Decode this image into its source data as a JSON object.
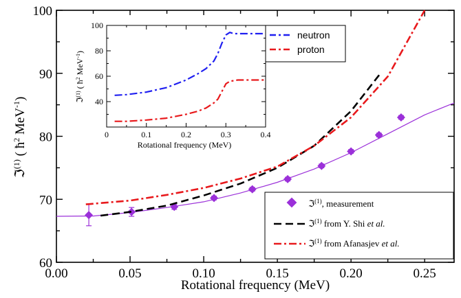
{
  "chart_data": [
    {
      "type": "scatter",
      "title": "",
      "xlabel": "Rotational frequency (MeV)",
      "ylabel": "ℑ(1) ( ħ² MeV⁻¹)",
      "ylabel_parts": {
        "sym": "ℑ",
        "sup1": "(1)",
        "open": " ( ",
        "hbar": "ħ",
        "sup2": "2",
        "mev": " MeV",
        "sup3": "-1",
        "close": ")"
      },
      "xlim": [
        0.0,
        0.27
      ],
      "ylim": [
        60,
        100
      ],
      "xticks": [
        0.0,
        0.05,
        0.1,
        0.15,
        0.2,
        0.25
      ],
      "xtick_labels": [
        "0.00",
        "0.05",
        "0.10",
        "0.15",
        "0.20",
        "0.25"
      ],
      "yticks": [
        60,
        70,
        80,
        90,
        100
      ],
      "ytick_labels": [
        "60",
        "70",
        "80",
        "90",
        "100"
      ],
      "grid": false,
      "legend_position": "lower-right",
      "series": [
        {
          "name": "ℑ(1), measurement",
          "legend": {
            "sym": "ℑ",
            "sup": "(1)",
            "text": ", measurement",
            "italic": ""
          },
          "kind": "markers",
          "marker": "diamond",
          "color": "#9b30d9",
          "x": [
            0.022,
            0.051,
            0.08,
            0.107,
            0.133,
            0.157,
            0.18,
            0.2,
            0.219,
            0.234
          ],
          "y": [
            67.5,
            68.0,
            68.8,
            70.2,
            71.6,
            73.2,
            75.3,
            77.6,
            80.2,
            83.0
          ],
          "yerr": [
            1.7,
            0.7,
            0.4,
            0.3,
            0.3,
            0.3,
            0.3,
            0.3,
            0.3,
            0.3
          ]
        },
        {
          "name": "fit",
          "kind": "line",
          "style": "solid",
          "color": "#9b30d9",
          "x": [
            0.0,
            0.025,
            0.05,
            0.075,
            0.1,
            0.125,
            0.15,
            0.175,
            0.2,
            0.225,
            0.25,
            0.27
          ],
          "y": [
            67.3,
            67.35,
            67.9,
            68.7,
            69.6,
            71.0,
            72.7,
            74.8,
            77.4,
            80.4,
            83.4,
            85.3
          ]
        },
        {
          "name": "ℑ(1) from Y. Shi et al.",
          "legend": {
            "sym": "ℑ",
            "sup": "(1)",
            "text": " from Y. Shi ",
            "italic": "et al."
          },
          "kind": "line",
          "style": "dash",
          "color": "#000000",
          "x": [
            0.03,
            0.05,
            0.075,
            0.1,
            0.125,
            0.15,
            0.175,
            0.2,
            0.22
          ],
          "y": [
            67.4,
            68.0,
            69.0,
            70.6,
            72.5,
            75.0,
            78.5,
            84.0,
            90.0
          ]
        },
        {
          "name": "ℑ(1) from Afanasjev et al.",
          "legend": {
            "sym": "ℑ",
            "sup": "(1)",
            "text": " from Afanasjev ",
            "italic": "et al."
          },
          "kind": "line",
          "style": "dashdot",
          "color": "#e8191c",
          "x": [
            0.02,
            0.05,
            0.075,
            0.1,
            0.125,
            0.15,
            0.175,
            0.2,
            0.225,
            0.25
          ],
          "y": [
            69.2,
            69.8,
            70.7,
            71.8,
            73.3,
            75.2,
            78.5,
            83.0,
            89.5,
            100.0
          ]
        }
      ]
    },
    {
      "type": "line",
      "title": "",
      "xlabel": "Rotational frequency (MeV)",
      "ylabel": "ℑ(1) ( ħ² MeV⁻¹)",
      "ylabel_parts": {
        "sym": "ℑ",
        "sup1": "(1)",
        "open": " ( ",
        "hbar": "ħ",
        "sup2": "2",
        "mev": " MeV",
        "sup3": "-1",
        "close": ")"
      },
      "xlim": [
        0.0,
        0.4
      ],
      "ylim": [
        20,
        100
      ],
      "xticks": [
        0.0,
        0.1,
        0.2,
        0.3,
        0.4
      ],
      "xtick_labels": [
        "0",
        "0.1",
        "0.2",
        "0.3",
        "0.4"
      ],
      "yticks": [
        20,
        40,
        60,
        80,
        100
      ],
      "ytick_labels": [
        "",
        "40",
        "60",
        "80",
        "100"
      ],
      "grid": false,
      "legend_position": "top-right",
      "series": [
        {
          "name": "neutron",
          "kind": "line",
          "style": "dashdot",
          "color": "#1f1ff0",
          "x": [
            0.02,
            0.05,
            0.1,
            0.15,
            0.2,
            0.23,
            0.25,
            0.27,
            0.28,
            0.29,
            0.3,
            0.31,
            0.32,
            0.35,
            0.4
          ],
          "y": [
            45,
            45.5,
            47.5,
            51,
            57,
            62,
            66,
            72,
            78,
            86,
            92.5,
            94.5,
            93.5,
            93.5,
            93.5
          ]
        },
        {
          "name": "proton",
          "kind": "line",
          "style": "dashdot",
          "color": "#e8191c",
          "x": [
            0.02,
            0.05,
            0.1,
            0.15,
            0.2,
            0.23,
            0.25,
            0.27,
            0.28,
            0.29,
            0.3,
            0.31,
            0.33,
            0.35,
            0.4
          ],
          "y": [
            24.5,
            24.5,
            25.5,
            27,
            30,
            32.5,
            35,
            39,
            42,
            48,
            54,
            56,
            57,
            57,
            57
          ]
        }
      ]
    }
  ]
}
